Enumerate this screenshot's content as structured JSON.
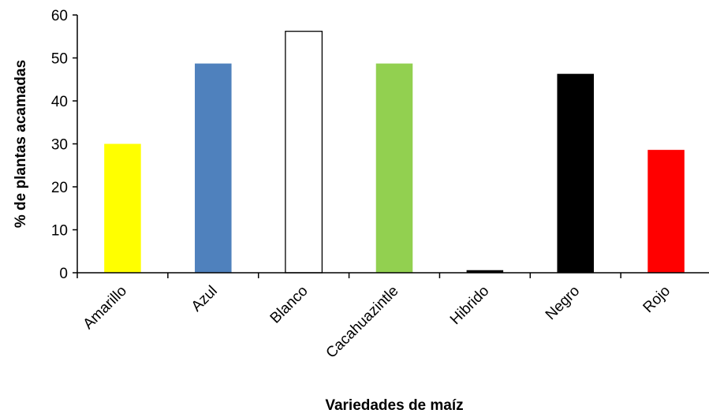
{
  "chart_data": {
    "type": "bar",
    "title": "",
    "xlabel": "Variedades de maíz",
    "ylabel": "% de plantas acamadas",
    "categories": [
      "Amarillo",
      "Azul",
      "Blanco",
      "Cacahuazintle",
      "Hibrido",
      "Negro",
      "Rojo"
    ],
    "values": [
      30,
      48.7,
      56.2,
      48.7,
      0.6,
      46.3,
      28.6
    ],
    "colors": [
      "#FFFF00",
      "#4F81BD",
      "#FFFFFF",
      "#92D050",
      "#000000",
      "#000000",
      "#FF0000"
    ],
    "ylim": [
      0,
      60
    ],
    "yticks": [
      0,
      10,
      20,
      30,
      40,
      50,
      60
    ],
    "grid": false,
    "legend": "none"
  }
}
